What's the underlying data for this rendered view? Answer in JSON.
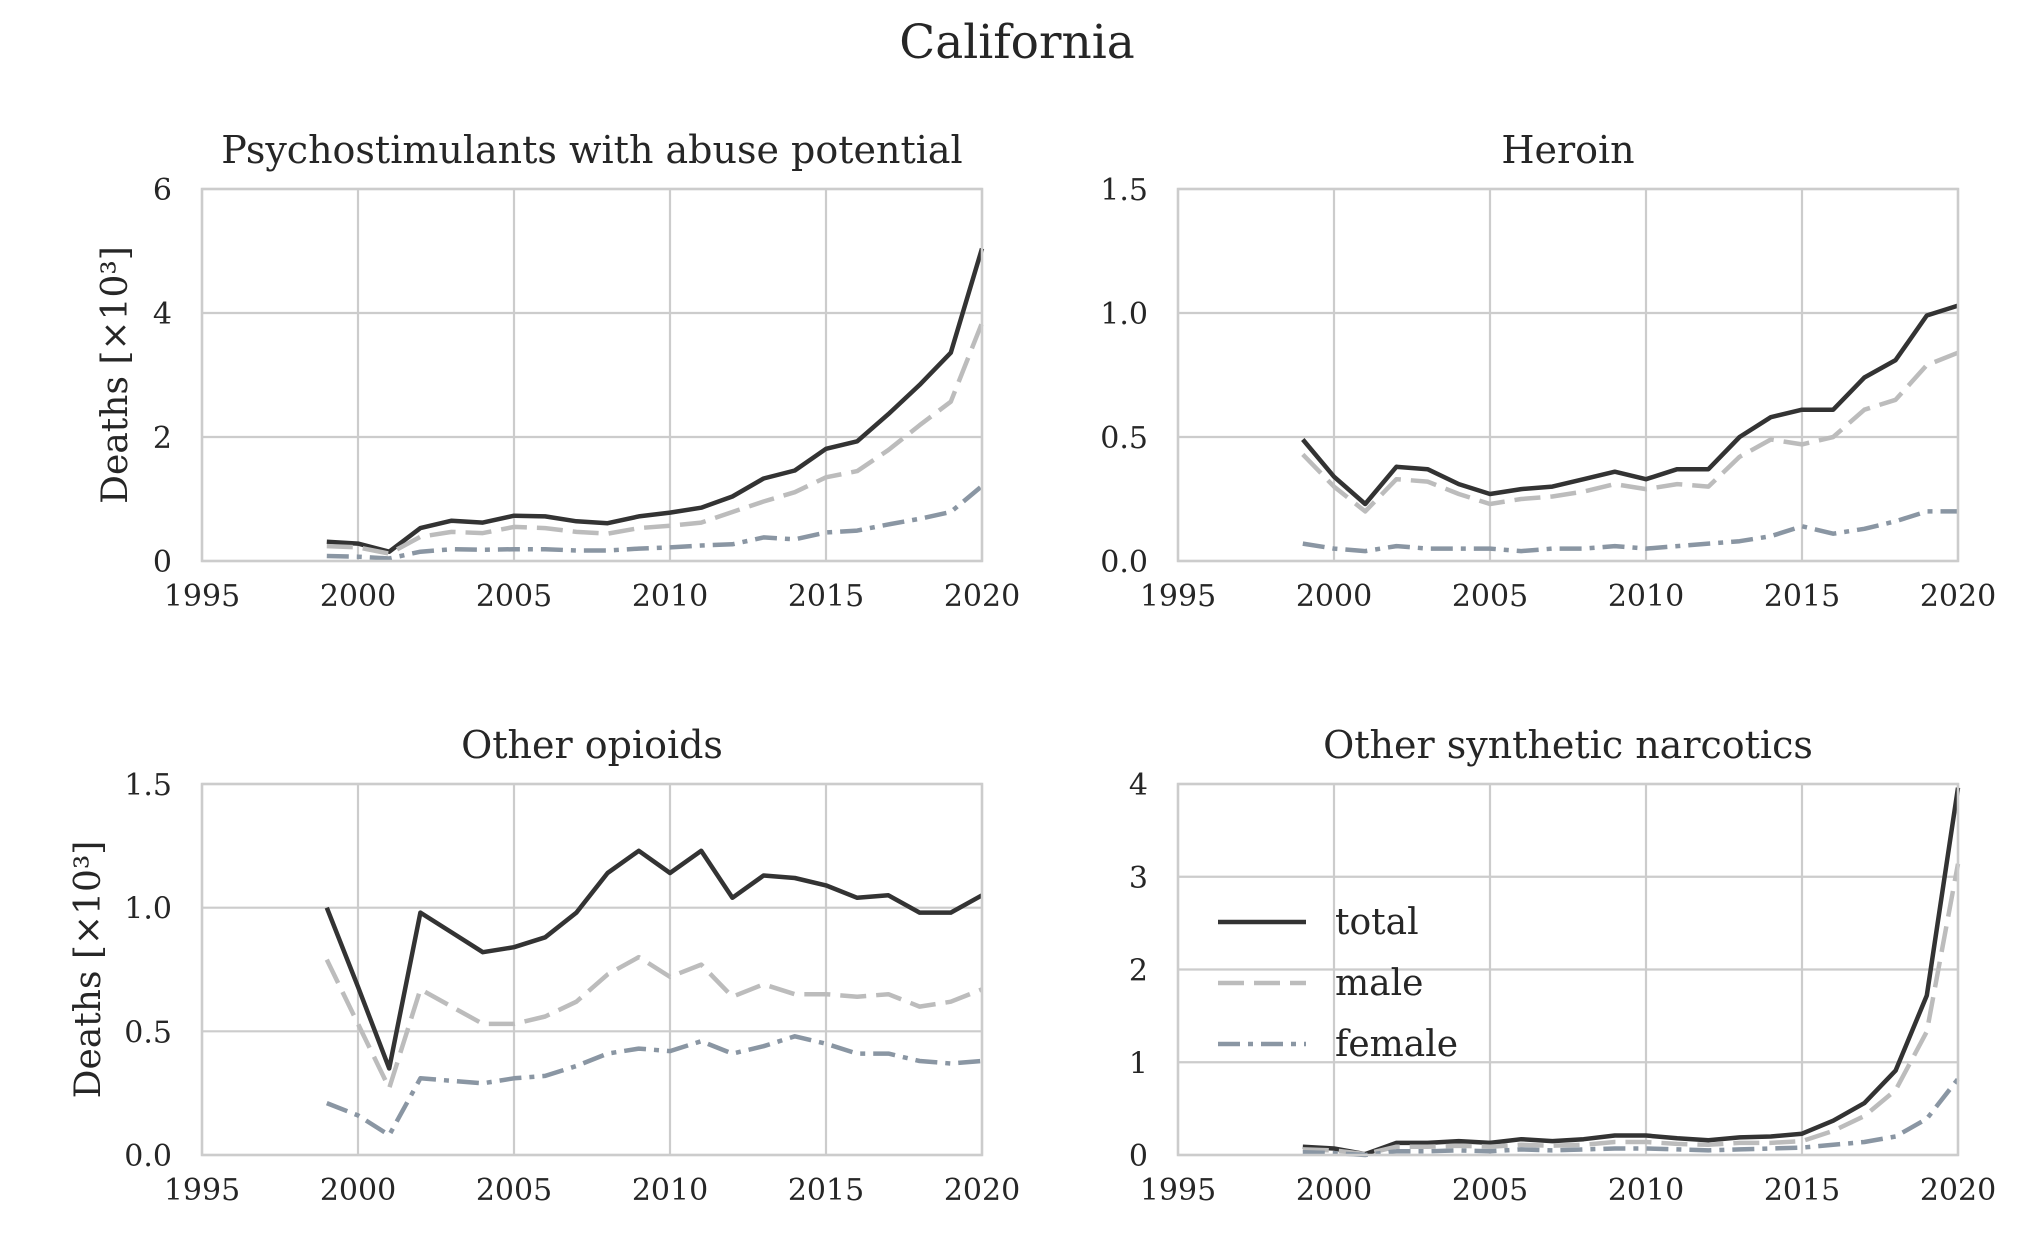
{
  "figure_title": "California",
  "chart_data": [
    {
      "type": "line",
      "title": "Psychostimulants with abuse potential",
      "xlabel": "",
      "ylabel": "Deaths [×10³]",
      "xlim": [
        1995,
        2020
      ],
      "ylim": [
        0,
        6
      ],
      "xticks": [
        "1995",
        "2000",
        "2005",
        "2010",
        "2015",
        "2020"
      ],
      "yticks": [
        "0",
        "2",
        "4",
        "6"
      ],
      "grid": true,
      "x": [
        1999,
        2000,
        2001,
        2002,
        2003,
        2004,
        2005,
        2006,
        2007,
        2008,
        2009,
        2010,
        2011,
        2012,
        2013,
        2014,
        2015,
        2016,
        2017,
        2018,
        2019,
        2020
      ],
      "series": [
        {
          "name": "total",
          "values": [
            0.31,
            0.28,
            0.15,
            0.53,
            0.65,
            0.62,
            0.73,
            0.72,
            0.64,
            0.61,
            0.72,
            0.78,
            0.86,
            1.04,
            1.33,
            1.46,
            1.81,
            1.93,
            2.37,
            2.84,
            3.36,
            5.04
          ]
        },
        {
          "name": "male",
          "values": [
            0.24,
            0.22,
            0.12,
            0.39,
            0.47,
            0.45,
            0.55,
            0.53,
            0.47,
            0.44,
            0.53,
            0.57,
            0.62,
            0.79,
            0.96,
            1.11,
            1.35,
            1.45,
            1.79,
            2.19,
            2.57,
            3.84
          ]
        },
        {
          "name": "female",
          "values": [
            0.08,
            0.07,
            0.04,
            0.15,
            0.19,
            0.18,
            0.19,
            0.19,
            0.17,
            0.17,
            0.2,
            0.22,
            0.25,
            0.27,
            0.38,
            0.35,
            0.46,
            0.49,
            0.59,
            0.68,
            0.79,
            1.21
          ]
        }
      ]
    },
    {
      "type": "line",
      "title": "Heroin",
      "xlabel": "",
      "ylabel": "",
      "xlim": [
        1995,
        2020
      ],
      "ylim": [
        0,
        1.5
      ],
      "xticks": [
        "1995",
        "2000",
        "2005",
        "2010",
        "2015",
        "2020"
      ],
      "yticks": [
        "0.0",
        "0.5",
        "1.0",
        "1.5"
      ],
      "grid": true,
      "x": [
        1999,
        2000,
        2001,
        2002,
        2003,
        2004,
        2005,
        2006,
        2007,
        2008,
        2009,
        2010,
        2011,
        2012,
        2013,
        2014,
        2015,
        2016,
        2017,
        2018,
        2019,
        2020
      ],
      "series": [
        {
          "name": "total",
          "values": [
            0.49,
            0.34,
            0.23,
            0.38,
            0.37,
            0.31,
            0.27,
            0.29,
            0.3,
            0.33,
            0.36,
            0.33,
            0.37,
            0.37,
            0.5,
            0.58,
            0.61,
            0.61,
            0.74,
            0.81,
            0.99,
            1.03
          ]
        },
        {
          "name": "male",
          "values": [
            0.43,
            0.3,
            0.2,
            0.33,
            0.32,
            0.27,
            0.23,
            0.25,
            0.26,
            0.28,
            0.31,
            0.29,
            0.31,
            0.3,
            0.42,
            0.49,
            0.47,
            0.5,
            0.61,
            0.65,
            0.79,
            0.84
          ]
        },
        {
          "name": "female",
          "values": [
            0.07,
            0.05,
            0.04,
            0.06,
            0.05,
            0.05,
            0.05,
            0.04,
            0.05,
            0.05,
            0.06,
            0.05,
            0.06,
            0.07,
            0.08,
            0.1,
            0.14,
            0.11,
            0.13,
            0.16,
            0.2,
            0.2
          ]
        }
      ]
    },
    {
      "type": "line",
      "title": "Other opioids",
      "xlabel": "",
      "ylabel": "Deaths [×10³]",
      "xlim": [
        1995,
        2020
      ],
      "ylim": [
        0,
        1.5
      ],
      "xticks": [
        "1995",
        "2000",
        "2005",
        "2010",
        "2015",
        "2020"
      ],
      "yticks": [
        "0.0",
        "0.5",
        "1.0",
        "1.5"
      ],
      "grid": true,
      "x": [
        1999,
        2000,
        2001,
        2002,
        2003,
        2004,
        2005,
        2006,
        2007,
        2008,
        2009,
        2010,
        2011,
        2012,
        2013,
        2014,
        2015,
        2016,
        2017,
        2018,
        2019,
        2020
      ],
      "series": [
        {
          "name": "total",
          "values": [
            1.0,
            0.68,
            0.35,
            0.98,
            0.9,
            0.82,
            0.84,
            0.88,
            0.98,
            1.14,
            1.23,
            1.14,
            1.23,
            1.04,
            1.13,
            1.12,
            1.09,
            1.04,
            1.05,
            0.98,
            0.98,
            1.05
          ]
        },
        {
          "name": "male",
          "values": [
            0.79,
            0.53,
            0.27,
            0.67,
            0.6,
            0.53,
            0.53,
            0.56,
            0.62,
            0.73,
            0.8,
            0.72,
            0.77,
            0.64,
            0.69,
            0.65,
            0.65,
            0.64,
            0.65,
            0.6,
            0.62,
            0.67
          ]
        },
        {
          "name": "female",
          "values": [
            0.21,
            0.16,
            0.08,
            0.31,
            0.3,
            0.29,
            0.31,
            0.32,
            0.36,
            0.41,
            0.43,
            0.42,
            0.46,
            0.41,
            0.44,
            0.48,
            0.45,
            0.41,
            0.41,
            0.38,
            0.37,
            0.38
          ]
        }
      ]
    },
    {
      "type": "line",
      "title": "Other synthetic narcotics",
      "xlabel": "",
      "ylabel": "",
      "xlim": [
        1995,
        2020
      ],
      "ylim": [
        0,
        4
      ],
      "xticks": [
        "1995",
        "2000",
        "2005",
        "2010",
        "2015",
        "2020"
      ],
      "yticks": [
        "0",
        "1",
        "2",
        "3",
        "4"
      ],
      "grid": true,
      "legend": {
        "placement": "center-left",
        "entries": [
          "total",
          "male",
          "female"
        ]
      },
      "x": [
        1999,
        2000,
        2001,
        2002,
        2003,
        2004,
        2005,
        2006,
        2007,
        2008,
        2009,
        2010,
        2011,
        2012,
        2013,
        2014,
        2015,
        2016,
        2017,
        2018,
        2019,
        2020
      ],
      "series": [
        {
          "name": "total",
          "values": [
            0.09,
            0.07,
            0.01,
            0.13,
            0.13,
            0.15,
            0.13,
            0.17,
            0.15,
            0.17,
            0.21,
            0.21,
            0.18,
            0.16,
            0.19,
            0.2,
            0.23,
            0.37,
            0.56,
            0.91,
            1.72,
            3.96
          ]
        },
        {
          "name": "male",
          "values": [
            0.06,
            0.05,
            0.01,
            0.09,
            0.09,
            0.1,
            0.09,
            0.11,
            0.1,
            0.11,
            0.14,
            0.14,
            0.12,
            0.11,
            0.13,
            0.13,
            0.15,
            0.26,
            0.42,
            0.7,
            1.33,
            3.14
          ]
        },
        {
          "name": "female",
          "values": [
            0.03,
            0.02,
            0.0,
            0.04,
            0.04,
            0.05,
            0.04,
            0.06,
            0.05,
            0.06,
            0.07,
            0.07,
            0.06,
            0.05,
            0.06,
            0.07,
            0.08,
            0.11,
            0.14,
            0.2,
            0.39,
            0.82
          ]
        }
      ]
    }
  ],
  "series_styles": {
    "total": {
      "color": "#333333",
      "dash": "none"
    },
    "male": {
      "color": "#bcbcbc",
      "dash": "dashed"
    },
    "female": {
      "color": "#8a96a3",
      "dash": "dashdot"
    }
  }
}
